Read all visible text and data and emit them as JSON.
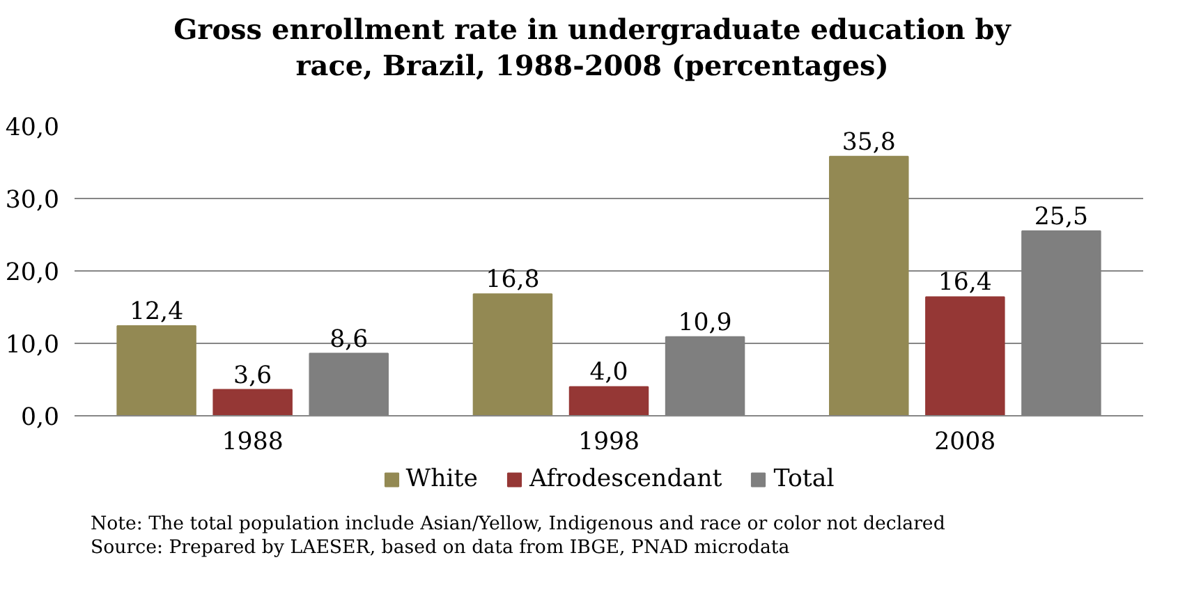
{
  "chart_data": {
    "type": "bar",
    "title": "Gross enrollment rate in undergraduate education by race, Brazil, 1988-2008 (percentages)",
    "categories": [
      "1988",
      "1998",
      "2008"
    ],
    "series": [
      {
        "name": "White",
        "color": "#938953",
        "values": [
          12.4,
          16.8,
          35.8
        ],
        "value_labels": [
          "12,4",
          "16,8",
          "35,8"
        ]
      },
      {
        "name": "Afrodescendant",
        "color": "#953735",
        "values": [
          3.6,
          4.0,
          16.4
        ],
        "value_labels": [
          "3,6",
          "4,0",
          "16,4"
        ]
      },
      {
        "name": "Total",
        "color": "#7f7f7f",
        "values": [
          8.6,
          10.9,
          25.5
        ],
        "value_labels": [
          "8,6",
          "10,9",
          "25,5"
        ]
      }
    ],
    "ylim": [
      0,
      40
    ],
    "yticks": [
      {
        "value": 0,
        "label": "0,0"
      },
      {
        "value": 10,
        "label": "10,0"
      },
      {
        "value": 20,
        "label": "20,0"
      },
      {
        "value": 30,
        "label": "30,0"
      },
      {
        "value": 40,
        "label": "40,0"
      }
    ],
    "grid": "y",
    "legend": "bottom",
    "annotations": [
      "Note: The total population include Asian/Yellow, Indigenous and  race or color not declared",
      "Source: Prepared by LAESER, based on data from IBGE, PNAD microdata"
    ]
  }
}
